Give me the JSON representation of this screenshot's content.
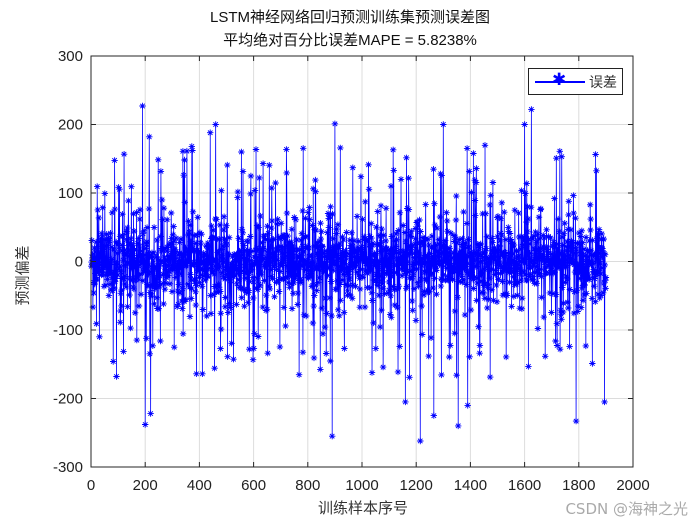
{
  "chart_data": {
    "type": "line",
    "title": "LSTM神经网络回归预测训练集预测误差图",
    "subtitle": "平均绝对百分比误差MAPE = 5.8238%",
    "xlabel": "训练样本序号",
    "ylabel": "预测偏差",
    "xlim": [
      0,
      2000
    ],
    "ylim": [
      -300,
      300
    ],
    "x_ticks": [
      0,
      200,
      400,
      600,
      800,
      1000,
      1200,
      1400,
      1600,
      1800,
      2000
    ],
    "y_ticks": [
      -300,
      -200,
      -100,
      0,
      100,
      200,
      300
    ],
    "grid": true,
    "legend_position": "northeast",
    "series": [
      {
        "name": "误差",
        "color": "#0000ff",
        "marker": "*",
        "n_points": 1900,
        "description": "Dense noisy error series around 0, mostly within ±50, spikes up to about ±260",
        "notable_points": [
          {
            "x": 190,
            "y": 227
          },
          {
            "x": 215,
            "y": 182
          },
          {
            "x": 460,
            "y": 200
          },
          {
            "x": 440,
            "y": 188
          },
          {
            "x": 900,
            "y": 201
          },
          {
            "x": 1265,
            "y": 238
          },
          {
            "x": 1625,
            "y": 222
          },
          {
            "x": 1300,
            "y": 200
          },
          {
            "x": 1600,
            "y": 200
          },
          {
            "x": 1115,
            "y": 163
          },
          {
            "x": 200,
            "y": -238
          },
          {
            "x": 890,
            "y": -255
          },
          {
            "x": 1215,
            "y": -262
          },
          {
            "x": 1355,
            "y": -240
          },
          {
            "x": 1790,
            "y": -233
          },
          {
            "x": 1895,
            "y": -205
          },
          {
            "x": 220,
            "y": -222
          },
          {
            "x": 1265,
            "y": -225
          },
          {
            "x": 1160,
            "y": -205
          },
          {
            "x": 1390,
            "y": -210
          }
        ]
      }
    ]
  },
  "watermark": "CSDN @海神之光"
}
